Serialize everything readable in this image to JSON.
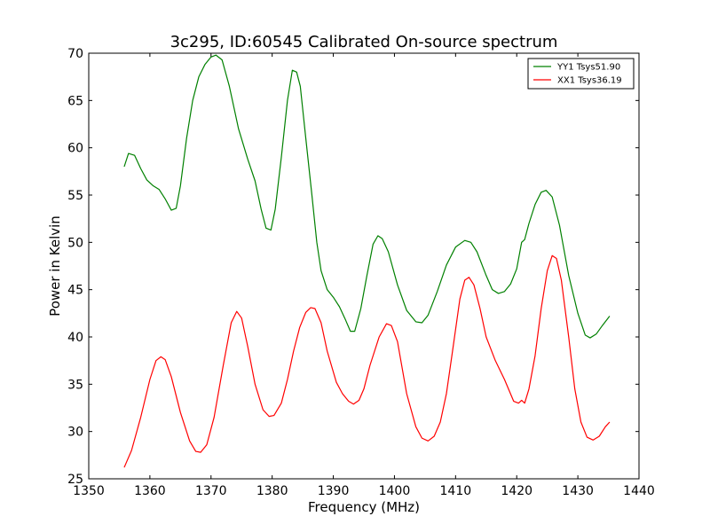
{
  "chart_data": {
    "type": "line",
    "title": "3c295, ID:60545 Calibrated On-source spectrum",
    "xlabel": "Frequency (MHz)",
    "ylabel": "Power in Kelvin",
    "xlim": [
      1350,
      1440
    ],
    "ylim": [
      25,
      70
    ],
    "xticks": [
      1350,
      1360,
      1370,
      1380,
      1390,
      1400,
      1410,
      1420,
      1430,
      1440
    ],
    "yticks": [
      25,
      30,
      35,
      40,
      45,
      50,
      55,
      60,
      65,
      70
    ],
    "grid": false,
    "legend_position": "top-right",
    "series": [
      {
        "name": "YY1 Tsys51.90",
        "color": "#008000",
        "points": [
          [
            1355.8,
            58.0
          ],
          [
            1356.5,
            59.4
          ],
          [
            1357.5,
            59.2
          ],
          [
            1358.5,
            57.8
          ],
          [
            1359.5,
            56.6
          ],
          [
            1360.5,
            56.0
          ],
          [
            1361.5,
            55.6
          ],
          [
            1362.5,
            54.6
          ],
          [
            1363.5,
            53.4
          ],
          [
            1364.3,
            53.6
          ],
          [
            1365.0,
            56.0
          ],
          [
            1366.0,
            61.0
          ],
          [
            1367.0,
            65.0
          ],
          [
            1368.0,
            67.5
          ],
          [
            1369.0,
            68.8
          ],
          [
            1370.0,
            69.6
          ],
          [
            1370.8,
            69.8
          ],
          [
            1371.8,
            69.3
          ],
          [
            1373.0,
            66.5
          ],
          [
            1374.5,
            62.0
          ],
          [
            1376.0,
            58.8
          ],
          [
            1377.2,
            56.5
          ],
          [
            1378.2,
            53.5
          ],
          [
            1379.0,
            51.5
          ],
          [
            1379.8,
            51.3
          ],
          [
            1380.5,
            53.5
          ],
          [
            1381.5,
            59.0
          ],
          [
            1382.5,
            65.0
          ],
          [
            1383.3,
            68.2
          ],
          [
            1384.0,
            68.0
          ],
          [
            1384.6,
            66.5
          ],
          [
            1385.5,
            61.0
          ],
          [
            1386.5,
            55.0
          ],
          [
            1387.3,
            50.0
          ],
          [
            1388.0,
            47.0
          ],
          [
            1389.0,
            45.0
          ],
          [
            1390.0,
            44.2
          ],
          [
            1391.0,
            43.2
          ],
          [
            1392.0,
            41.8
          ],
          [
            1392.8,
            40.6
          ],
          [
            1393.5,
            40.6
          ],
          [
            1394.5,
            43.0
          ],
          [
            1395.5,
            46.5
          ],
          [
            1396.5,
            49.8
          ],
          [
            1397.3,
            50.7
          ],
          [
            1398.0,
            50.4
          ],
          [
            1399.0,
            49.0
          ],
          [
            1400.5,
            45.5
          ],
          [
            1402.0,
            42.8
          ],
          [
            1403.5,
            41.6
          ],
          [
            1404.5,
            41.5
          ],
          [
            1405.5,
            42.3
          ],
          [
            1407.0,
            44.8
          ],
          [
            1408.5,
            47.6
          ],
          [
            1410.0,
            49.5
          ],
          [
            1411.5,
            50.2
          ],
          [
            1412.5,
            50.0
          ],
          [
            1413.5,
            49.0
          ],
          [
            1415.0,
            46.5
          ],
          [
            1416.0,
            45.0
          ],
          [
            1417.0,
            44.6
          ],
          [
            1418.0,
            44.8
          ],
          [
            1419.0,
            45.6
          ],
          [
            1420.0,
            47.2
          ],
          [
            1420.8,
            50.0
          ],
          [
            1421.3,
            50.3
          ],
          [
            1422.0,
            52.0
          ],
          [
            1423.0,
            54.0
          ],
          [
            1424.0,
            55.3
          ],
          [
            1424.8,
            55.5
          ],
          [
            1425.8,
            54.8
          ],
          [
            1427.0,
            51.8
          ],
          [
            1428.5,
            46.5
          ],
          [
            1430.0,
            42.5
          ],
          [
            1431.2,
            40.2
          ],
          [
            1432.0,
            39.9
          ],
          [
            1433.0,
            40.3
          ],
          [
            1434.0,
            41.2
          ],
          [
            1435.2,
            42.2
          ]
        ]
      },
      {
        "name": "XX1 Tsys36.19",
        "color": "#ff0000",
        "points": [
          [
            1355.8,
            26.2
          ],
          [
            1357.0,
            28.0
          ],
          [
            1358.5,
            31.5
          ],
          [
            1360.0,
            35.5
          ],
          [
            1361.0,
            37.5
          ],
          [
            1361.8,
            37.9
          ],
          [
            1362.5,
            37.6
          ],
          [
            1363.5,
            35.8
          ],
          [
            1365.0,
            32.0
          ],
          [
            1366.5,
            29.0
          ],
          [
            1367.5,
            27.9
          ],
          [
            1368.3,
            27.8
          ],
          [
            1369.3,
            28.6
          ],
          [
            1370.5,
            31.5
          ],
          [
            1372.0,
            37.0
          ],
          [
            1373.3,
            41.5
          ],
          [
            1374.2,
            42.7
          ],
          [
            1375.0,
            42.0
          ],
          [
            1376.0,
            39.0
          ],
          [
            1377.2,
            35.0
          ],
          [
            1378.5,
            32.3
          ],
          [
            1379.5,
            31.6
          ],
          [
            1380.3,
            31.7
          ],
          [
            1381.5,
            33.0
          ],
          [
            1382.5,
            35.5
          ],
          [
            1383.5,
            38.5
          ],
          [
            1384.5,
            41.0
          ],
          [
            1385.5,
            42.6
          ],
          [
            1386.3,
            43.1
          ],
          [
            1387.0,
            43.0
          ],
          [
            1388.0,
            41.5
          ],
          [
            1389.0,
            38.5
          ],
          [
            1390.5,
            35.2
          ],
          [
            1391.5,
            34.0
          ],
          [
            1392.5,
            33.2
          ],
          [
            1393.3,
            32.9
          ],
          [
            1394.2,
            33.3
          ],
          [
            1395.0,
            34.5
          ],
          [
            1396.0,
            37.0
          ],
          [
            1397.5,
            40.0
          ],
          [
            1398.7,
            41.4
          ],
          [
            1399.5,
            41.2
          ],
          [
            1400.5,
            39.5
          ],
          [
            1402.0,
            34.0
          ],
          [
            1403.5,
            30.5
          ],
          [
            1404.5,
            29.3
          ],
          [
            1405.5,
            29.0
          ],
          [
            1406.5,
            29.5
          ],
          [
            1407.5,
            31.0
          ],
          [
            1408.5,
            34.0
          ],
          [
            1409.5,
            38.5
          ],
          [
            1410.7,
            44.0
          ],
          [
            1411.5,
            46.0
          ],
          [
            1412.2,
            46.3
          ],
          [
            1413.0,
            45.5
          ],
          [
            1414.0,
            43.0
          ],
          [
            1415.0,
            40.0
          ],
          [
            1416.5,
            37.5
          ],
          [
            1418.0,
            35.5
          ],
          [
            1419.5,
            33.2
          ],
          [
            1420.3,
            33.0
          ],
          [
            1420.8,
            33.3
          ],
          [
            1421.3,
            33.0
          ],
          [
            1422.0,
            34.5
          ],
          [
            1423.0,
            38.0
          ],
          [
            1424.0,
            43.0
          ],
          [
            1425.0,
            47.0
          ],
          [
            1425.8,
            48.6
          ],
          [
            1426.5,
            48.3
          ],
          [
            1427.3,
            46.0
          ],
          [
            1428.5,
            40.0
          ],
          [
            1429.5,
            34.5
          ],
          [
            1430.5,
            31.0
          ],
          [
            1431.5,
            29.4
          ],
          [
            1432.5,
            29.1
          ],
          [
            1433.5,
            29.5
          ],
          [
            1434.5,
            30.5
          ],
          [
            1435.2,
            31.0
          ]
        ]
      }
    ]
  }
}
